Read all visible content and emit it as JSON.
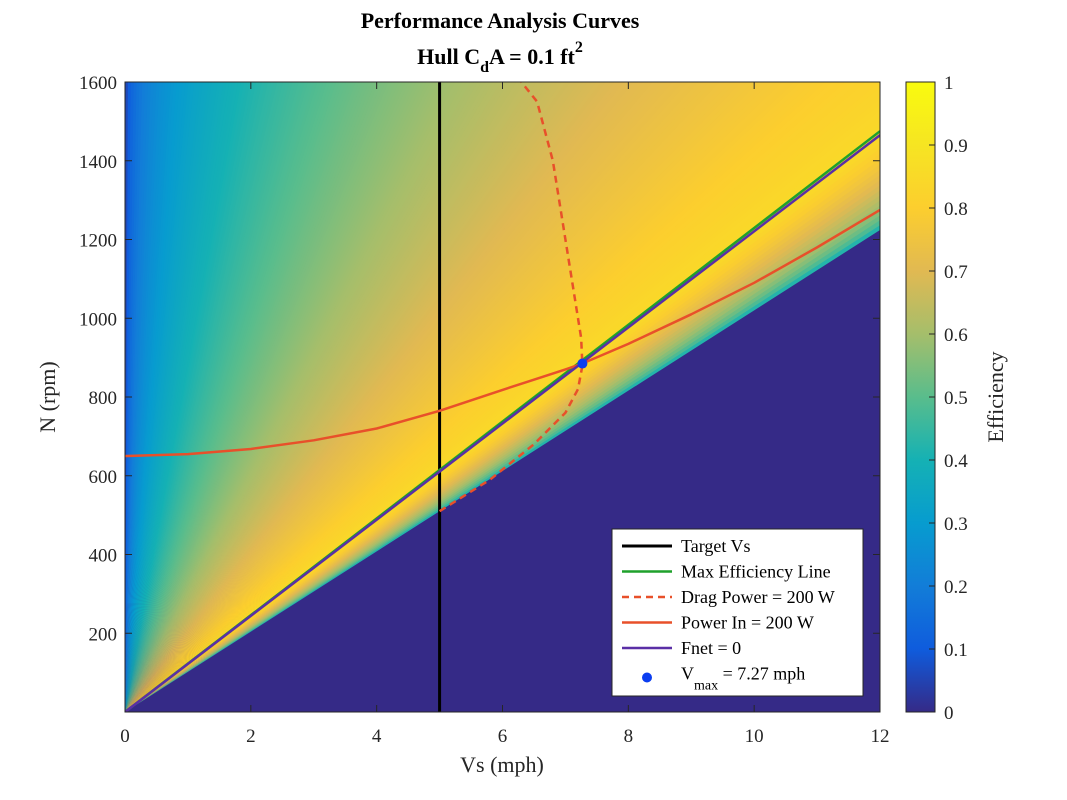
{
  "chart_data": {
    "type": "heatmap",
    "title": {
      "line1": "Performance Analysis Curves",
      "line2_prefix": "Hull C",
      "line2_sub": "d",
      "line2_mid": "A = 0.1 ft",
      "line2_sup": "2"
    },
    "xlabel": "Vs (mph)",
    "ylabel": "N (rpm)",
    "colorbar_label": "Efficiency",
    "xlim": [
      0,
      12
    ],
    "ylim": [
      0,
      1600
    ],
    "clim": [
      0,
      1
    ],
    "x_ticks": [
      0,
      2,
      4,
      6,
      8,
      10,
      12
    ],
    "y_ticks": [
      200,
      400,
      600,
      800,
      1000,
      1200,
      1400,
      1600
    ],
    "colorbar_ticks": [
      0,
      0.1,
      0.2,
      0.3,
      0.4,
      0.5,
      0.6,
      0.7,
      0.8,
      0.9,
      1
    ],
    "colormap": "parula",
    "grid": false,
    "legend_location": "bottom-right",
    "heatmap_description_of_efficiency": {
      "zero_region": "N below about 102 rpm per mph (Vs)",
      "peak_near_ratio_rpm_per_mph": 122,
      "max_value": 0.85
    },
    "series": [
      {
        "name": "Target Vs",
        "style": "solid",
        "color": "#000000",
        "x": [
          5,
          5
        ],
        "y": [
          0,
          1600
        ]
      },
      {
        "name": "Max Efficiency Line",
        "style": "solid",
        "color": "#1fa12b",
        "x": [
          0,
          12
        ],
        "y": [
          0,
          1475
        ]
      },
      {
        "name": "Drag Power = 200 W",
        "style": "dashed",
        "color": "#e8502a",
        "x": [
          5.0,
          5.8,
          6.5,
          7.0,
          7.2,
          7.27,
          7.25,
          7.1,
          6.95,
          6.8,
          6.55,
          6.3
        ],
        "y": [
          510,
          590,
          680,
          760,
          820,
          880,
          950,
          1100,
          1250,
          1400,
          1550,
          1600
        ]
      },
      {
        "name": "Power In = 200 W",
        "style": "solid",
        "color": "#e8502a",
        "x": [
          0,
          1,
          2,
          3,
          4,
          5,
          6,
          7,
          7.27,
          8,
          9,
          10,
          11,
          12
        ],
        "y": [
          650,
          655,
          668,
          690,
          720,
          765,
          818,
          870,
          885,
          935,
          1010,
          1090,
          1180,
          1275
        ]
      },
      {
        "name": "Fnet = 0",
        "style": "solid",
        "color": "#5a2fa6",
        "x": [
          0,
          12
        ],
        "y": [
          0,
          1465
        ]
      },
      {
        "name": "V",
        "name_sub": "max",
        "name_tail": " = 7.27 mph",
        "style": "marker",
        "color": "#0b3df0",
        "x": [
          7.27
        ],
        "y": [
          885
        ]
      }
    ]
  }
}
